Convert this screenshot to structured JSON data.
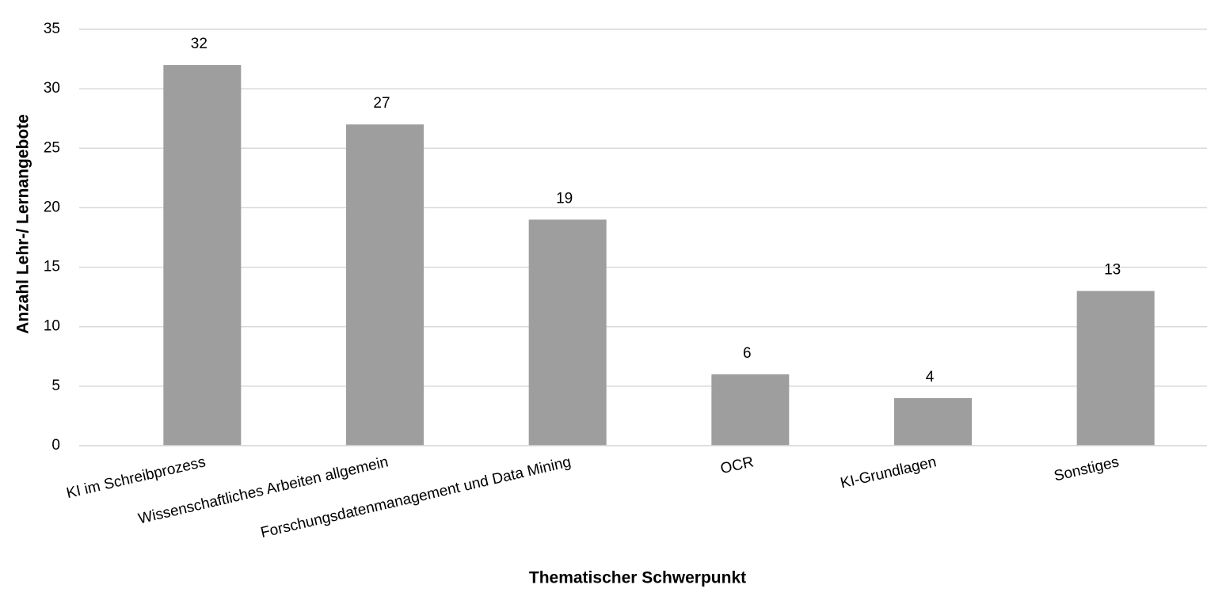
{
  "chart_data": {
    "type": "bar",
    "x_label": "Thematischer Schwerpunkt",
    "y_label": "Anzahl Lehr-/ Lernangebote",
    "categories": [
      "KI im Schreibprozess",
      "Wissenschaftliches Arbeiten allgemein",
      "Forschungsdatenmanagement und Data Mining",
      "OCR",
      "KI-Grundlagen",
      "Sonstiges"
    ],
    "values": [
      32,
      27,
      19,
      6,
      4,
      13
    ],
    "color": "#9e9e9e",
    "ylim": [
      0,
      35
    ],
    "yticks": [
      0,
      5,
      10,
      15,
      20,
      25,
      30,
      35
    ],
    "grid": true
  }
}
